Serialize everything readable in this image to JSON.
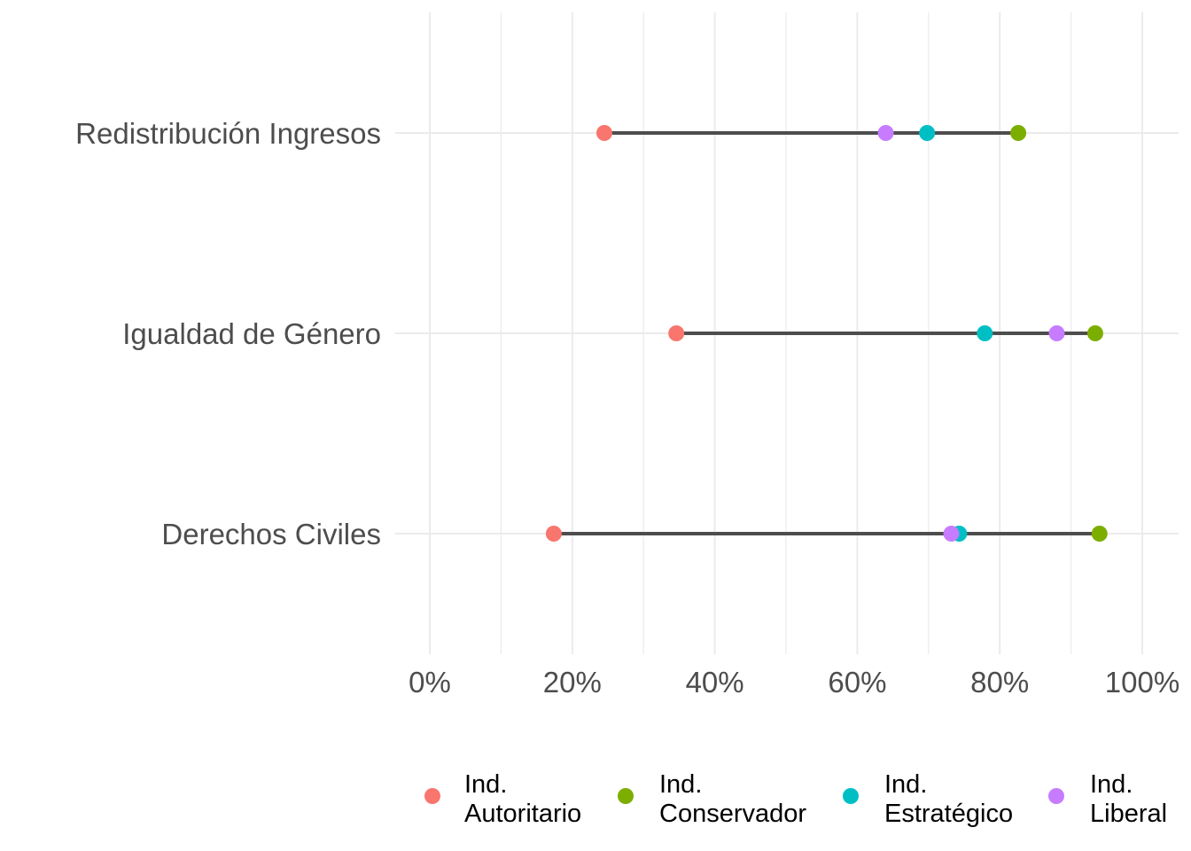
{
  "chart_data": {
    "type": "dumbbell",
    "title": "",
    "xlabel": "",
    "ylabel": "",
    "xlim": [
      0,
      1
    ],
    "x_ticks": [
      0,
      0.2,
      0.4,
      0.6,
      0.8,
      1.0
    ],
    "x_tick_labels": [
      "0%",
      "20%",
      "40%",
      "60%",
      "80%",
      "100%"
    ],
    "categories": [
      "Redistribución Ingresos",
      "Igualdad de Género",
      "Derechos Civiles"
    ],
    "series": [
      {
        "name": "Ind. Autoritario",
        "label_lines": [
          "Ind.",
          "Autoritario"
        ],
        "color": "#F8766D",
        "values": [
          0.245,
          0.346,
          0.174
        ]
      },
      {
        "name": "Ind. Conservador",
        "label_lines": [
          "Ind.",
          "Conservador"
        ],
        "color": "#7CAE00",
        "values": [
          0.826,
          0.934,
          0.94
        ]
      },
      {
        "name": "Ind. Estratégico",
        "label_lines": [
          "Ind.",
          "Estratégico"
        ],
        "color": "#00BFC4",
        "values": [
          0.698,
          0.779,
          0.743
        ]
      },
      {
        "name": "Ind. Liberal",
        "label_lines": [
          "Ind.",
          "Liberal"
        ],
        "color": "#C77CFF",
        "values": [
          0.64,
          0.88,
          0.732
        ]
      }
    ],
    "legend_position": "bottom",
    "grid": true
  }
}
